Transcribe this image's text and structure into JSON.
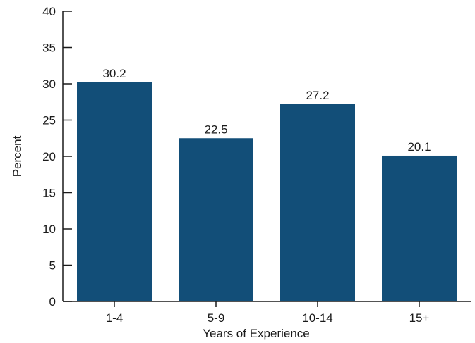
{
  "colors": {
    "bar": "#124e78",
    "axis": "#1a1a1a"
  },
  "chart_data": {
    "type": "bar",
    "categories": [
      "1-4",
      "5-9",
      "10-14",
      "15+"
    ],
    "values": [
      30.2,
      22.5,
      27.2,
      20.1
    ],
    "data_labels": [
      "30.2",
      "22.5",
      "27.2",
      "20.1"
    ],
    "title": "",
    "xlabel": "Years of Experience",
    "ylabel": "Percent",
    "ylim": [
      0,
      40
    ],
    "yticks": [
      0,
      5,
      10,
      15,
      20,
      25,
      30,
      35,
      40
    ],
    "grid": false,
    "legend": "none"
  }
}
